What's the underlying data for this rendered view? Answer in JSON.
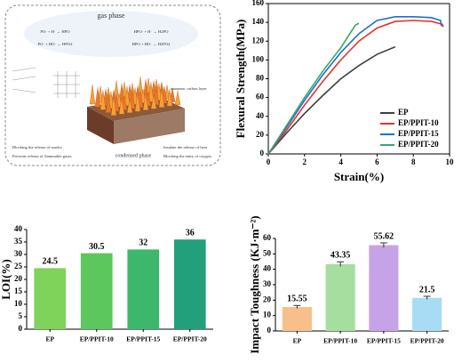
{
  "diagram": {
    "gas_phase": "gas phase",
    "equations": [
      "PO· + H· → HPO",
      "PO· + HO· → HPO2",
      "HPO· + H· → H2PO",
      "HPO + HO· → H2PO2"
    ],
    "carbon_layer": "carbon layer",
    "condensed_phase": "condensed phase",
    "notes": [
      "Blocking the release of smoke",
      "Prevents release of flammable gases",
      "Insulate the release of heat",
      "Blocking the entry of oxygen"
    ]
  },
  "chart_data": [
    {
      "type": "line",
      "xlabel": "Strain(%)",
      "ylabel": "Flexural Strength(MPa)",
      "xlim": [
        0,
        10
      ],
      "xticks": [
        0,
        2,
        4,
        6,
        8,
        10
      ],
      "ylim": [
        0,
        160
      ],
      "yticks": [
        0,
        20,
        40,
        60,
        80,
        100,
        120,
        140,
        160
      ],
      "legend": "lower right",
      "series": [
        {
          "name": "EP",
          "color": "#404040",
          "x": [
            0,
            1,
            2,
            3,
            4,
            5,
            6,
            7
          ],
          "values": [
            0,
            22,
            43,
            62,
            80,
            94,
            106,
            114
          ]
        },
        {
          "name": "EP/PPIT-10",
          "color": "#e8312a",
          "x": [
            0,
            1,
            2,
            3,
            4,
            5,
            6,
            7,
            8,
            9,
            9.6,
            9.65
          ],
          "values": [
            0,
            25,
            52,
            77,
            100,
            120,
            134,
            141,
            142,
            141,
            138,
            135
          ]
        },
        {
          "name": "EP/PPIT-15",
          "color": "#1f6fd1",
          "x": [
            0,
            1,
            2,
            3,
            4,
            5,
            6,
            7,
            8,
            9,
            9.5,
            9.55
          ],
          "values": [
            0,
            28,
            57,
            84,
            108,
            128,
            142,
            146,
            146,
            145,
            142,
            136
          ]
        },
        {
          "name": "EP/PPIT-20",
          "color": "#3aa86b",
          "x": [
            0,
            1,
            2,
            3,
            4,
            4.8,
            5
          ],
          "values": [
            0,
            30,
            60,
            88,
            113,
            137,
            139
          ]
        }
      ]
    },
    {
      "type": "bar",
      "ylabel": "LOI(%)",
      "categories": [
        "EP",
        "EP/PPIT-10",
        "EP/PPIT-15",
        "EP/PPIT-20"
      ],
      "values": [
        24.5,
        30.5,
        32,
        36
      ],
      "colors": [
        "#7fd25a",
        "#5cc75c",
        "#3cb76c",
        "#22a07c"
      ],
      "ylim": [
        0,
        40
      ],
      "yticks": [
        0,
        5,
        10,
        15,
        20,
        25,
        30,
        35,
        40
      ]
    },
    {
      "type": "bar",
      "ylabel": "Impact Toughness (KJ·m⁻²)",
      "categories": [
        "EP",
        "EP/PPIT-10",
        "EP/PPIT-15",
        "EP/PPIT-20"
      ],
      "values": [
        15.55,
        43.35,
        55.62,
        21.5
      ],
      "errors": [
        1,
        1.5,
        1.5,
        1
      ],
      "colors": [
        "#f8bf8a",
        "#a6dea0",
        "#c6a3e6",
        "#a8dcf5"
      ],
      "ylim": [
        0,
        60
      ],
      "yticks": [
        0,
        10,
        20,
        30,
        40,
        50,
        60
      ]
    }
  ]
}
